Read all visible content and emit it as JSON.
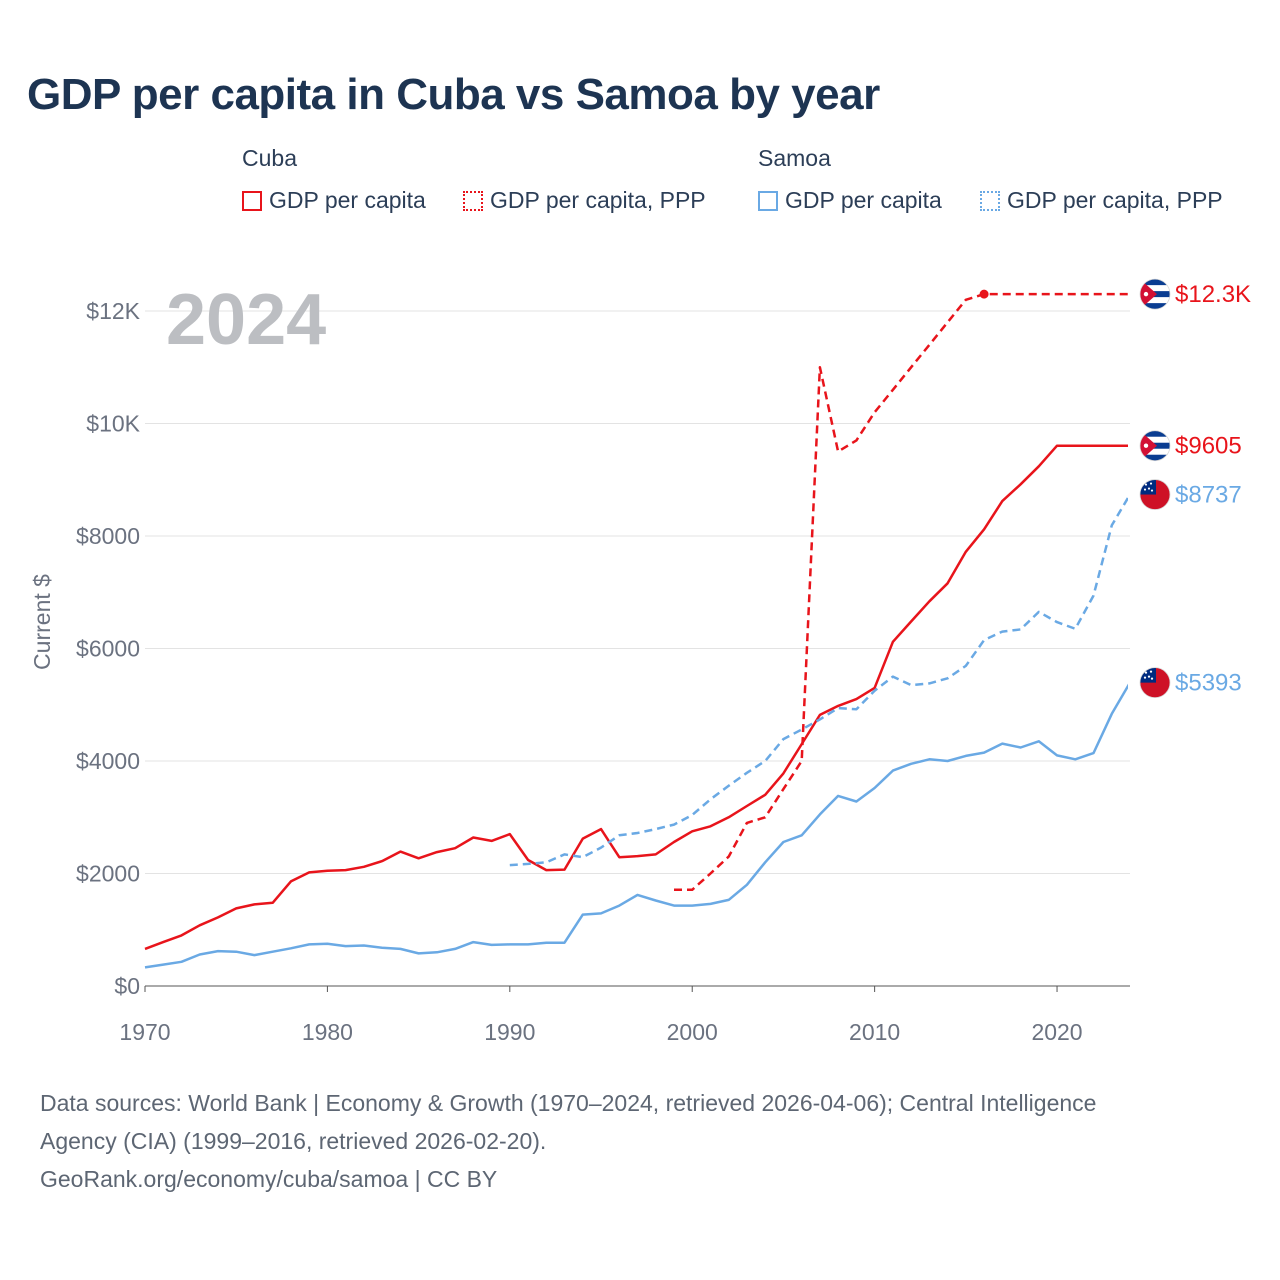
{
  "title": "GDP per capita in Cuba vs Samoa by year",
  "legend": {
    "groups": [
      {
        "name": "Cuba",
        "items": [
          {
            "label": "GDP per capita",
            "color": "#e8141b",
            "style": "solid"
          },
          {
            "label": "GDP per capita, PPP",
            "color": "#e8141b",
            "style": "dotted"
          }
        ]
      },
      {
        "name": "Samoa",
        "items": [
          {
            "label": "GDP per capita",
            "color": "#6aa9e4",
            "style": "solid"
          },
          {
            "label": "GDP per capita, PPP",
            "color": "#6aa9e4",
            "style": "dotted"
          }
        ]
      }
    ]
  },
  "chart_data": {
    "type": "line",
    "year_overlay": "2024",
    "ylabel": "Current $",
    "xlim": [
      1970,
      2024
    ],
    "ylim": [
      0,
      13000
    ],
    "x_ticks": [
      "1970",
      "1980",
      "1990",
      "2000",
      "2010",
      "2020"
    ],
    "y_ticks": [
      {
        "value": 0,
        "label": "$0"
      },
      {
        "value": 2000,
        "label": "$2000"
      },
      {
        "value": 4000,
        "label": "$4000"
      },
      {
        "value": 6000,
        "label": "$6000"
      },
      {
        "value": 8000,
        "label": "$8000"
      },
      {
        "value": 10000,
        "label": "$10K"
      },
      {
        "value": 12000,
        "label": "$12K"
      }
    ],
    "series": [
      {
        "name": "Cuba GDP per capita",
        "color": "#e8141b",
        "dash": "solid",
        "end_label": "$9605",
        "flag": "cuba",
        "x": [
          1970,
          1971,
          1972,
          1973,
          1974,
          1975,
          1976,
          1977,
          1978,
          1979,
          1980,
          1981,
          1982,
          1983,
          1984,
          1985,
          1986,
          1987,
          1988,
          1989,
          1990,
          1991,
          1992,
          1993,
          1994,
          1995,
          1996,
          1997,
          1998,
          1999,
          2000,
          2001,
          2002,
          2003,
          2004,
          2005,
          2006,
          2007,
          2008,
          2009,
          2010,
          2011,
          2012,
          2013,
          2014,
          2015,
          2016,
          2017,
          2018,
          2019,
          2020,
          2021,
          2022,
          2023,
          2024
        ],
        "values": [
          660,
          780,
          900,
          1080,
          1220,
          1380,
          1450,
          1480,
          1860,
          2020,
          2050,
          2060,
          2120,
          2220,
          2390,
          2270,
          2380,
          2450,
          2640,
          2580,
          2700,
          2240,
          2060,
          2070,
          2620,
          2790,
          2290,
          2310,
          2340,
          2560,
          2750,
          2840,
          3000,
          3200,
          3400,
          3780,
          4300,
          4820,
          4980,
          5100,
          5300,
          6120,
          6480,
          6840,
          7160,
          7720,
          8120,
          8620,
          8920,
          9240,
          9605,
          9605,
          9605,
          9605,
          9605
        ]
      },
      {
        "name": "Cuba GDP per capita, PPP",
        "color": "#e8141b",
        "dash": "dashed",
        "end_label": "$12.3K",
        "flag": "cuba",
        "dot_year": 2016,
        "x": [
          1999,
          2000,
          2001,
          2002,
          2003,
          2004,
          2005,
          2006,
          2007,
          2008,
          2009,
          2010,
          2011,
          2012,
          2013,
          2014,
          2015,
          2016,
          2017,
          2018,
          2019,
          2020,
          2021,
          2022,
          2023,
          2024
        ],
        "values": [
          1710,
          1710,
          2000,
          2300,
          2900,
          3000,
          3500,
          4000,
          11000,
          9500,
          9700,
          10200,
          10600,
          11000,
          11400,
          11800,
          12200,
          12300,
          12300,
          12300,
          12300,
          12300,
          12300,
          12300,
          12300,
          12300
        ]
      },
      {
        "name": "Samoa GDP per capita",
        "color": "#6aa9e4",
        "dash": "solid",
        "end_label": "$5393",
        "flag": "samoa",
        "x": [
          1970,
          1971,
          1972,
          1973,
          1974,
          1975,
          1976,
          1977,
          1978,
          1979,
          1980,
          1981,
          1982,
          1983,
          1984,
          1985,
          1986,
          1987,
          1988,
          1989,
          1990,
          1991,
          1992,
          1993,
          1994,
          1995,
          1996,
          1997,
          1998,
          1999,
          2000,
          2001,
          2002,
          2003,
          2004,
          2005,
          2006,
          2007,
          2008,
          2009,
          2010,
          2011,
          2012,
          2013,
          2014,
          2015,
          2016,
          2017,
          2018,
          2019,
          2020,
          2021,
          2022,
          2023,
          2024
        ],
        "values": [
          330,
          380,
          430,
          560,
          620,
          610,
          550,
          610,
          670,
          740,
          750,
          710,
          720,
          680,
          660,
          580,
          600,
          660,
          780,
          730,
          740,
          740,
          770,
          770,
          1270,
          1290,
          1430,
          1620,
          1520,
          1430,
          1430,
          1460,
          1530,
          1800,
          2200,
          2560,
          2680,
          3050,
          3380,
          3280,
          3520,
          3830,
          3950,
          4030,
          4000,
          4090,
          4150,
          4310,
          4240,
          4350,
          4100,
          4030,
          4140,
          4840,
          5393
        ]
      },
      {
        "name": "Samoa GDP per capita, PPP",
        "color": "#6aa9e4",
        "dash": "dashed",
        "end_label": "$8737",
        "flag": "samoa",
        "x": [
          1990,
          1991,
          1992,
          1993,
          1994,
          1995,
          1996,
          1997,
          1998,
          1999,
          2000,
          2001,
          2002,
          2003,
          2004,
          2005,
          2006,
          2007,
          2008,
          2009,
          2010,
          2011,
          2012,
          2013,
          2014,
          2015,
          2016,
          2017,
          2018,
          2019,
          2020,
          2021,
          2022,
          2023,
          2024
        ],
        "values": [
          2150,
          2170,
          2200,
          2340,
          2290,
          2460,
          2680,
          2720,
          2790,
          2870,
          3040,
          3320,
          3560,
          3790,
          4000,
          4390,
          4560,
          4740,
          4940,
          4920,
          5250,
          5500,
          5350,
          5380,
          5470,
          5690,
          6150,
          6300,
          6340,
          6650,
          6470,
          6350,
          6940,
          8190,
          8737
        ]
      }
    ]
  },
  "footer": {
    "line1": "Data sources: World Bank | Economy & Growth (1970–2024, retrieved 2026-04-06); Central Intelligence",
    "line2": "Agency (CIA) (1999–2016, retrieved 2026-02-20).",
    "line3": "GeoRank.org/economy/cuba/samoa | CC BY"
  }
}
